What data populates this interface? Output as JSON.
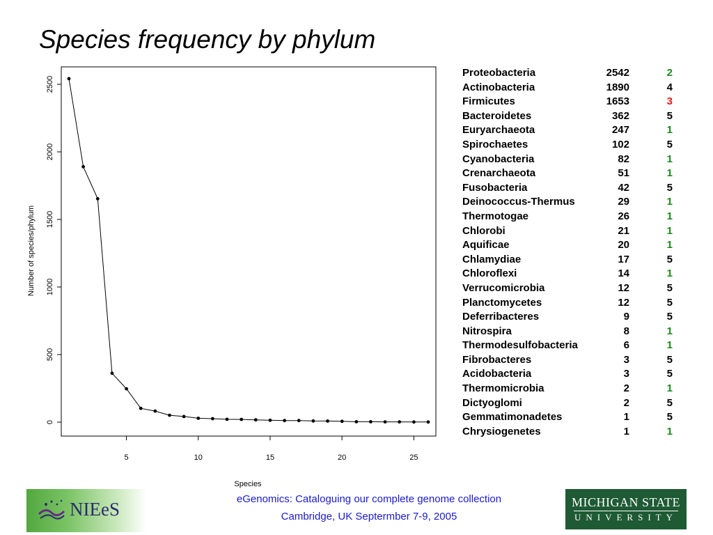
{
  "slide": {
    "title": "Species frequency by phylum"
  },
  "chart_data": {
    "type": "line",
    "xlabel": "Species",
    "ylabel": "Number of species/phylum",
    "xlim": [
      0,
      27
    ],
    "ylim": [
      0,
      2600
    ],
    "x_ticks": [
      "5",
      "10",
      "15",
      "20",
      "25"
    ],
    "y_ticks": [
      "0",
      "500",
      "1000",
      "1500",
      "2000",
      "2500"
    ],
    "x": [
      1,
      2,
      3,
      4,
      5,
      6,
      7,
      8,
      9,
      10,
      11,
      12,
      13,
      14,
      15,
      16,
      17,
      18,
      19,
      20,
      21,
      22,
      23,
      24,
      25,
      26
    ],
    "values": [
      2542,
      1890,
      1653,
      362,
      247,
      102,
      82,
      51,
      42,
      29,
      26,
      21,
      20,
      17,
      14,
      12,
      12,
      9,
      8,
      6,
      3,
      3,
      2,
      2,
      1,
      1
    ],
    "grid": false,
    "markers": true
  },
  "table": {
    "rows": [
      {
        "name": "Proteobacteria",
        "count": "2542",
        "code": "2",
        "code_color": "#1a8a1a"
      },
      {
        "name": "Actinobacteria",
        "count": "1890",
        "code": "4",
        "code_color": "#000000"
      },
      {
        "name": "Firmicutes",
        "count": "1653",
        "code": "3",
        "code_color": "#e01b1b"
      },
      {
        "name": "Bacteroidetes",
        "count": "362",
        "code": "5",
        "code_color": "#000000"
      },
      {
        "name": "Euryarchaeota",
        "count": "247",
        "code": "1",
        "code_color": "#1a8a1a"
      },
      {
        "name": "Spirochaetes",
        "count": "102",
        "code": "5",
        "code_color": "#000000"
      },
      {
        "name": "Cyanobacteria",
        "count": "82",
        "code": "1",
        "code_color": "#1a8a1a"
      },
      {
        "name": "Crenarchaeota",
        "count": "51",
        "code": "1",
        "code_color": "#1a8a1a"
      },
      {
        "name": "Fusobacteria",
        "count": "42",
        "code": "5",
        "code_color": "#000000"
      },
      {
        "name": "Deinococcus-Thermus",
        "count": "29",
        "code": "1",
        "code_color": "#1a8a1a"
      },
      {
        "name": "Thermotogae",
        "count": "26",
        "code": "1",
        "code_color": "#1a8a1a"
      },
      {
        "name": "Chlorobi",
        "count": "21",
        "code": "1",
        "code_color": "#1a8a1a"
      },
      {
        "name": "Aquificae",
        "count": "20",
        "code": "1",
        "code_color": "#1a8a1a"
      },
      {
        "name": "Chlamydiae",
        "count": "17",
        "code": "5",
        "code_color": "#000000"
      },
      {
        "name": "Chloroflexi",
        "count": "14",
        "code": "1",
        "code_color": "#1a8a1a"
      },
      {
        "name": "Verrucomicrobia",
        "count": "12",
        "code": "5",
        "code_color": "#000000"
      },
      {
        "name": "Planctomycetes",
        "count": "12",
        "code": "5",
        "code_color": "#000000"
      },
      {
        "name": "Deferribacteres",
        "count": "9",
        "code": "5",
        "code_color": "#000000"
      },
      {
        "name": "Nitrospira",
        "count": "8",
        "code": "1",
        "code_color": "#1a8a1a"
      },
      {
        "name": "Thermodesulfobacteria",
        "count": "6",
        "code": "1",
        "code_color": "#1a8a1a"
      },
      {
        "name": "Fibrobacteres",
        "count": "3",
        "code": "5",
        "code_color": "#000000"
      },
      {
        "name": "Acidobacteria",
        "count": "3",
        "code": "5",
        "code_color": "#000000"
      },
      {
        "name": "Thermomicrobia",
        "count": "2",
        "code": "1",
        "code_color": "#1a8a1a"
      },
      {
        "name": "Dictyoglomi",
        "count": "2",
        "code": "5",
        "code_color": "#000000"
      },
      {
        "name": "Gemmatimonadetes",
        "count": "1",
        "code": "5",
        "code_color": "#000000"
      },
      {
        "name": "Chrysiogenetes",
        "count": "1",
        "code": "1",
        "code_color": "#1a8a1a"
      }
    ]
  },
  "footer": {
    "line1": "eGenomics: Cataloguing our complete genome collection",
    "line2": "Cambridge, UK Septermber 7-9, 2005",
    "left_logo_text": "NIEeS",
    "right_logo_line1": "MICHIGAN STATE",
    "right_logo_line2": "UNIVERSITY"
  },
  "colors": {
    "link_blue": "#1a1acc",
    "msu_green": "#1e5a34",
    "niees_green": "#52a83e"
  }
}
